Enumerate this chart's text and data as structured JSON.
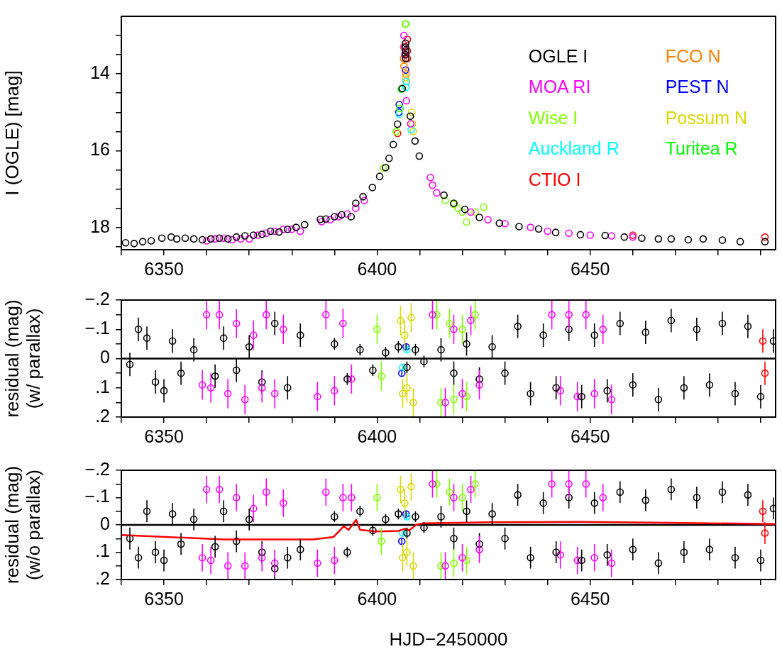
{
  "chart_data": [
    {
      "type": "scatter",
      "ylabel": "I (OGLE) [mag]",
      "xlim": [
        6340,
        6493.5
      ],
      "ylim": [
        18.58,
        12.5
      ],
      "xticks": [
        {
          "value": 6340,
          "label": null
        },
        6350,
        {
          "value": 6360,
          "label": null
        },
        {
          "value": 6370,
          "label": null
        },
        {
          "value": 6380,
          "label": null
        },
        {
          "value": 6390,
          "label": null
        },
        6400,
        {
          "value": 6410,
          "label": null
        },
        {
          "value": 6420,
          "label": null
        },
        {
          "value": 6430,
          "label": null
        },
        {
          "value": 6440,
          "label": null
        },
        6450,
        {
          "value": 6460,
          "label": null
        },
        {
          "value": 6470,
          "label": null
        },
        {
          "value": 6480,
          "label": null
        },
        {
          "value": 6490,
          "label": null
        }
      ],
      "yticks": [
        {
          "value": 13,
          "label": null
        },
        {
          "value": 13.5,
          "label": null
        },
        14,
        {
          "value": 14.5,
          "label": null
        },
        {
          "value": 15,
          "label": null
        },
        {
          "value": 15.5,
          "label": null
        },
        16,
        {
          "value": 16.5,
          "label": null
        },
        {
          "value": 17,
          "label": null
        },
        {
          "value": 17.5,
          "label": null
        },
        18,
        {
          "value": 18.5,
          "label": null
        }
      ],
      "grid": false,
      "legend": "top right",
      "marker": "circle",
      "series": [
        {
          "name": "OGLE I",
          "color": "#000000",
          "x": [
            6341,
            6343,
            6345,
            6347,
            6349.5,
            6351.7,
            6353,
            6355,
            6357,
            6359,
            6361,
            6363,
            6365,
            6367,
            6369,
            6371,
            6373,
            6375,
            6377,
            6379,
            6381,
            6383,
            6386.7,
            6388,
            6390,
            6391.7,
            6393.9,
            6395,
            6396.7,
            6398.9,
            6400.6,
            6402,
            6402.8,
            6403.8,
            6404.8,
            6405.9,
            6406.7,
            6406.7,
            6406.7,
            6406.7,
            6406.7,
            6407.8,
            6408.9,
            6409.9,
            6415.7,
            6418,
            6420.6,
            6424,
            6428.7,
            6433.3,
            6437.9,
            6441.9,
            6447.7,
            6453.5,
            6458,
            6462.1,
            6466,
            6469,
            6473,
            6476.5,
            6481,
            6485.2,
            6491
          ],
          "values": [
            18.4,
            18.42,
            18.37,
            18.35,
            18.28,
            18.25,
            18.3,
            18.28,
            18.3,
            18.32,
            18.3,
            18.28,
            18.3,
            18.25,
            18.22,
            18.2,
            18.18,
            18.1,
            18.12,
            18.05,
            18.0,
            17.93,
            17.79,
            17.78,
            17.72,
            17.67,
            17.72,
            17.37,
            17.2,
            16.96,
            16.67,
            16.44,
            16.2,
            15.84,
            15.31,
            14.38,
            13.2,
            13.3,
            13.4,
            13.5,
            13.6,
            15.1,
            15.75,
            16.14,
            17.16,
            17.37,
            17.53,
            17.74,
            17.89,
            17.98,
            18.04,
            18.13,
            18.19,
            18.21,
            18.25,
            18.28,
            18.3,
            18.3,
            18.32,
            18.3,
            18.33,
            18.37,
            18.37
          ]
        },
        {
          "name": "MOA RI",
          "color": "#ff00ff",
          "x": [
            6360,
            6362,
            6364,
            6366,
            6368,
            6370,
            6372,
            6374,
            6376,
            6378,
            6380,
            6382,
            6387,
            6389,
            6391,
            6393,
            6395,
            6397,
            6406.3,
            6406.4,
            6406.5,
            6406.9,
            6407.9,
            6412.5,
            6413,
            6414,
            6422,
            6426,
            6430,
            6436,
            6440,
            6445,
            6450,
            6455,
            6460
          ],
          "values": [
            18.35,
            18.3,
            18.28,
            18.32,
            18.3,
            18.3,
            18.2,
            18.15,
            18.1,
            18.05,
            18.05,
            18.1,
            17.85,
            17.8,
            17.72,
            17.65,
            17.5,
            17.3,
            13.0,
            13.3,
            13.5,
            14.7,
            15.3,
            16.7,
            16.9,
            17.1,
            17.6,
            17.8,
            17.9,
            18.0,
            18.1,
            18.15,
            18.2,
            18.22,
            18.25
          ]
        },
        {
          "name": "Wise I",
          "color": "#80ff00",
          "x": [
            6401.5,
            6404.5,
            6405.3,
            6406.6,
            6416,
            6418,
            6419,
            6420,
            6421,
            6423,
            6425
          ],
          "values": [
            16.45,
            15.5,
            14.9,
            12.7,
            17.3,
            17.4,
            17.5,
            17.6,
            17.86,
            17.6,
            17.47
          ]
        },
        {
          "name": "Auckland R",
          "color": "#00ffff",
          "x": [
            6405.2,
            6405.4,
            6406.8,
            6406.9,
            6408
          ],
          "values": [
            15.05,
            14.9,
            14.35,
            14.2,
            15.45
          ]
        },
        {
          "name": "CTIO I",
          "color": "#ff0000",
          "x": [
            6404.8,
            6407.1,
            6407.1,
            6407.1,
            6460,
            6491
          ],
          "values": [
            15.55,
            13.1,
            13.4,
            13.6,
            18.2,
            18.25
          ]
        },
        {
          "name": "FCO N",
          "color": "#ff8000",
          "x": [
            6406.2,
            6406.2,
            6406.3,
            6406.8,
            6406.8
          ],
          "values": [
            13.3,
            13.6,
            13.8,
            14.0,
            14.2
          ]
        },
        {
          "name": "PEST N",
          "color": "#0000ff",
          "x": [
            6405.1,
            6405.2,
            6406.7
          ],
          "values": [
            15.0,
            14.8,
            13.9
          ]
        },
        {
          "name": "Possum N",
          "color": "#d8d800",
          "x": [
            6406.7,
            6408.1,
            6408.3,
            6408.5
          ],
          "values": [
            14.1,
            15.0,
            15.3,
            15.5
          ]
        },
        {
          "name": "Turitea R",
          "color": "#00ff00",
          "x": [
            6405.7,
            6406.7
          ],
          "values": [
            14.4,
            12.7
          ]
        }
      ]
    },
    {
      "type": "scatter",
      "ylabel": "residual (mag)\n(w/ parallax)",
      "xlim": [
        6340,
        6493.5
      ],
      "ylim": [
        0.2,
        -0.2
      ],
      "xticks": [
        {
          "value": 6340,
          "label": null
        },
        6350,
        {
          "value": 6360,
          "label": null
        },
        {
          "value": 6370,
          "label": null
        },
        {
          "value": 6380,
          "label": null
        },
        {
          "value": 6390,
          "label": null
        },
        6400,
        {
          "value": 6410,
          "label": null
        },
        {
          "value": 6420,
          "label": null
        },
        {
          "value": 6430,
          "label": null
        },
        {
          "value": 6440,
          "label": null
        },
        6450,
        {
          "value": 6460,
          "label": null
        },
        {
          "value": 6470,
          "label": null
        },
        {
          "value": 6480,
          "label": null
        },
        {
          "value": 6490,
          "label": null
        }
      ],
      "yticks": [
        {
          "value": -0.2,
          "label": "−.2"
        },
        {
          "value": -0.15,
          "label": null
        },
        {
          "value": -0.1,
          "label": "−.1"
        },
        {
          "value": -0.05,
          "label": null
        },
        0,
        {
          "value": 0.05,
          "label": null
        },
        {
          "value": 0.1,
          "label": ".1"
        },
        {
          "value": 0.15,
          "label": null
        },
        {
          "value": 0.2,
          "label": ".2"
        }
      ],
      "grid": false,
      "marker": "circle",
      "ref_lines": [
        {
          "axis": "y",
          "value": 0,
          "color": "#000000"
        }
      ],
      "series": [
        {
          "color": "#000000",
          "x": [
            6342,
            6344,
            6346,
            6348,
            6350,
            6352,
            6354,
            6357,
            6362,
            6364,
            6367,
            6370,
            6373,
            6376,
            6379,
            6382,
            6390,
            6393,
            6396,
            6399,
            6402,
            6405,
            6407,
            6409,
            6411,
            6415,
            6418,
            6421,
            6424,
            6427,
            6430,
            6433,
            6436,
            6439,
            6442,
            6445,
            6448,
            6451,
            6454,
            6457,
            6460,
            6463,
            6466,
            6469,
            6472,
            6475,
            6478,
            6481,
            6484,
            6487,
            6490,
            6493
          ],
          "values": [
            0.02,
            -0.1,
            -0.07,
            0.08,
            0.11,
            -0.06,
            0.05,
            -0.03,
            0.06,
            -0.07,
            0.04,
            -0.04,
            0.08,
            -0.12,
            0.1,
            -0.08,
            -0.05,
            0.07,
            -0.03,
            0.04,
            -0.02,
            -0.04,
            0.03,
            -0.03,
            0.01,
            -0.03,
            0.05,
            -0.05,
            0.07,
            -0.04,
            0.05,
            -0.11,
            0.12,
            -0.08,
            0.1,
            -0.1,
            0.13,
            -0.08,
            0.11,
            -0.12,
            0.09,
            -0.09,
            0.14,
            -0.13,
            0.1,
            -0.1,
            0.09,
            -0.12,
            0.12,
            -0.11,
            0.13,
            -0.06
          ],
          "errors": [
            0.04,
            0.04,
            0.04,
            0.04,
            0.04,
            0.04,
            0.04,
            0.04,
            0.04,
            0.04,
            0.04,
            0.04,
            0.04,
            0.04,
            0.04,
            0.04,
            0.02,
            0.02,
            0.02,
            0.02,
            0.02,
            0.02,
            0.02,
            0.02,
            0.02,
            0.04,
            0.04,
            0.04,
            0.04,
            0.04,
            0.04,
            0.04,
            0.04,
            0.04,
            0.04,
            0.04,
            0.04,
            0.04,
            0.04,
            0.04,
            0.04,
            0.04,
            0.04,
            0.04,
            0.04,
            0.04,
            0.04,
            0.04,
            0.04,
            0.04,
            0.04,
            0.04
          ]
        },
        {
          "color": "#ff00ff",
          "x": [
            6359,
            6360,
            6361,
            6363,
            6365,
            6367,
            6369,
            6371,
            6373,
            6374,
            6376,
            6378,
            6386,
            6388,
            6390,
            6392,
            6394,
            6413,
            6416,
            6418,
            6420,
            6422,
            6424,
            6441,
            6443,
            6445,
            6447,
            6449,
            6451,
            6453,
            6455
          ],
          "values": [
            0.09,
            -0.15,
            0.1,
            -0.15,
            0.12,
            -0.12,
            0.14,
            -0.08,
            0.1,
            -0.15,
            0.12,
            -0.1,
            0.13,
            -0.15,
            0.11,
            -0.12,
            0.07,
            -0.15,
            0.15,
            -0.1,
            0.12,
            -0.13,
            0.09,
            -0.15,
            0.11,
            -0.15,
            0.13,
            -0.15,
            0.12,
            -0.1,
            0.14
          ],
          "errors": [
            0.05,
            0.05,
            0.05,
            0.05,
            0.05,
            0.05,
            0.05,
            0.05,
            0.05,
            0.05,
            0.05,
            0.05,
            0.05,
            0.05,
            0.05,
            0.05,
            0.05,
            0.05,
            0.05,
            0.05,
            0.05,
            0.05,
            0.05,
            0.05,
            0.05,
            0.05,
            0.05,
            0.05,
            0.05,
            0.05,
            0.05
          ]
        },
        {
          "color": "#80ff00",
          "x": [
            6400,
            6401,
            6414,
            6415,
            6417,
            6418,
            6420,
            6421,
            6423
          ],
          "values": [
            -0.1,
            0.06,
            -0.15,
            0.15,
            -0.12,
            0.14,
            -0.1,
            0.13,
            -0.15
          ],
          "errors": [
            0.05,
            0.05,
            0.05,
            0.05,
            0.05,
            0.05,
            0.05,
            0.05,
            0.05
          ]
        },
        {
          "color": "#d8d800",
          "x": [
            6405.5,
            6406,
            6406.5,
            6407,
            6408,
            6408.5
          ],
          "values": [
            -0.13,
            0.12,
            -0.08,
            0.1,
            -0.14,
            0.15
          ],
          "errors": [
            0.05,
            0.05,
            0.05,
            0.05,
            0.05,
            0.05
          ]
        },
        {
          "color": "#00ffff",
          "x": [
            6406,
            6407
          ],
          "values": [
            0.03,
            -0.03
          ],
          "errors": [
            0.01,
            0.01
          ]
        },
        {
          "color": "#0000ff",
          "x": [
            6405.8,
            6406.8
          ],
          "values": [
            0.05,
            -0.04
          ],
          "errors": [
            0.01,
            0.01
          ]
        },
        {
          "color": "#ff0000",
          "x": [
            6490.5,
            6491
          ],
          "values": [
            -0.06,
            0.05
          ],
          "errors": [
            0.04,
            0.04
          ]
        }
      ]
    },
    {
      "type": "scatter",
      "ylabel": "residual (mag)\n(w/o parallax)",
      "xlabel": "HJD−2450000",
      "xlim": [
        6340,
        6493.5
      ],
      "ylim": [
        0.2,
        -0.2
      ],
      "xticks": [
        {
          "value": 6340,
          "label": null
        },
        6350,
        {
          "value": 6360,
          "label": null
        },
        {
          "value": 6370,
          "label": null
        },
        {
          "value": 6380,
          "label": null
        },
        {
          "value": 6390,
          "label": null
        },
        6400,
        {
          "value": 6410,
          "label": null
        },
        {
          "value": 6420,
          "label": null
        },
        {
          "value": 6430,
          "label": null
        },
        {
          "value": 6440,
          "label": null
        },
        6450,
        {
          "value": 6460,
          "label": null
        },
        {
          "value": 6470,
          "label": null
        },
        {
          "value": 6480,
          "label": null
        },
        {
          "value": 6490,
          "label": null
        }
      ],
      "yticks": [
        {
          "value": -0.2,
          "label": "−.2"
        },
        {
          "value": -0.15,
          "label": null
        },
        {
          "value": -0.1,
          "label": "−.1"
        },
        {
          "value": -0.05,
          "label": null
        },
        0,
        {
          "value": 0.05,
          "label": null
        },
        {
          "value": 0.1,
          "label": ".1"
        },
        {
          "value": 0.15,
          "label": null
        },
        {
          "value": 0.2,
          "label": ".2"
        }
      ],
      "grid": false,
      "marker": "circle",
      "ref_lines": [
        {
          "axis": "y",
          "value": 0,
          "color": "#000000"
        }
      ],
      "series": [
        {
          "color": "#000000",
          "x": [
            6342,
            6344,
            6346,
            6348,
            6350,
            6352,
            6354,
            6357,
            6362,
            6364,
            6367,
            6370,
            6373,
            6376,
            6379,
            6382,
            6390,
            6393,
            6396,
            6399,
            6402,
            6405,
            6407,
            6409,
            6411,
            6415,
            6418,
            6421,
            6424,
            6427,
            6430,
            6433,
            6436,
            6439,
            6442,
            6445,
            6448,
            6451,
            6454,
            6457,
            6460,
            6463,
            6466,
            6469,
            6472,
            6475,
            6478,
            6481,
            6484,
            6487,
            6490,
            6493
          ],
          "values": [
            0.05,
            0.12,
            -0.05,
            0.1,
            0.13,
            -0.04,
            0.07,
            -0.02,
            0.08,
            -0.05,
            0.06,
            -0.02,
            0.1,
            0.16,
            0.12,
            0.09,
            -0.03,
            0.1,
            -0.05,
            0.02,
            -0.02,
            -0.04,
            0.03,
            -0.03,
            0.01,
            -0.03,
            0.05,
            -0.05,
            0.07,
            -0.04,
            0.05,
            -0.11,
            0.12,
            -0.08,
            0.1,
            -0.1,
            0.13,
            -0.08,
            0.11,
            -0.12,
            0.09,
            -0.09,
            0.14,
            -0.13,
            0.1,
            -0.1,
            0.09,
            -0.12,
            0.12,
            -0.11,
            0.13,
            -0.06
          ],
          "errors": [
            0.04,
            0.04,
            0.04,
            0.04,
            0.04,
            0.04,
            0.04,
            0.04,
            0.04,
            0.04,
            0.04,
            0.04,
            0.04,
            0.04,
            0.04,
            0.04,
            0.02,
            0.02,
            0.02,
            0.02,
            0.02,
            0.02,
            0.02,
            0.02,
            0.02,
            0.04,
            0.04,
            0.04,
            0.04,
            0.04,
            0.04,
            0.04,
            0.04,
            0.04,
            0.04,
            0.04,
            0.04,
            0.04,
            0.04,
            0.04,
            0.04,
            0.04,
            0.04,
            0.04,
            0.04,
            0.04,
            0.04,
            0.04,
            0.04,
            0.04,
            0.04,
            0.04
          ]
        },
        {
          "color": "#ff00ff",
          "x": [
            6359,
            6360,
            6361,
            6363,
            6365,
            6367,
            6369,
            6371,
            6373,
            6374,
            6376,
            6378,
            6386,
            6388,
            6390,
            6392,
            6394,
            6413,
            6416,
            6418,
            6420,
            6422,
            6424,
            6441,
            6443,
            6445,
            6447,
            6449,
            6451,
            6453,
            6455
          ],
          "values": [
            0.12,
            -0.13,
            0.13,
            -0.13,
            0.15,
            -0.1,
            0.15,
            -0.06,
            0.12,
            -0.12,
            0.14,
            -0.08,
            0.14,
            -0.12,
            0.13,
            -0.1,
            -0.1,
            -0.15,
            0.15,
            -0.1,
            0.12,
            -0.13,
            0.09,
            -0.15,
            0.11,
            -0.15,
            0.13,
            -0.15,
            0.12,
            -0.1,
            0.14
          ],
          "errors": [
            0.05,
            0.05,
            0.05,
            0.05,
            0.05,
            0.05,
            0.05,
            0.05,
            0.05,
            0.05,
            0.05,
            0.05,
            0.05,
            0.05,
            0.05,
            0.05,
            0.05,
            0.05,
            0.05,
            0.05,
            0.05,
            0.05,
            0.05,
            0.05,
            0.05,
            0.05,
            0.05,
            0.05,
            0.05,
            0.05,
            0.05
          ]
        },
        {
          "color": "#80ff00",
          "x": [
            6400,
            6401,
            6414,
            6415,
            6417,
            6418,
            6420,
            6421,
            6423
          ],
          "values": [
            -0.1,
            0.06,
            -0.15,
            0.15,
            -0.12,
            0.14,
            -0.1,
            0.13,
            -0.15
          ],
          "errors": [
            0.05,
            0.05,
            0.05,
            0.05,
            0.05,
            0.05,
            0.05,
            0.05,
            0.05
          ]
        },
        {
          "color": "#d8d800",
          "x": [
            6405.5,
            6406,
            6406.5,
            6407,
            6408,
            6408.5
          ],
          "values": [
            -0.13,
            0.12,
            -0.08,
            0.1,
            -0.14,
            0.15
          ],
          "errors": [
            0.05,
            0.05,
            0.05,
            0.05,
            0.05,
            0.05
          ]
        },
        {
          "color": "#00ffff",
          "x": [
            6406,
            6407
          ],
          "values": [
            0.03,
            -0.03
          ],
          "errors": [
            0.01,
            0.01
          ]
        },
        {
          "color": "#0000ff",
          "x": [
            6405.8,
            6406.8
          ],
          "values": [
            0.06,
            -0.04
          ],
          "errors": [
            0.01,
            0.01
          ]
        },
        {
          "color": "#ff0000",
          "x": [
            6490.5,
            6491
          ],
          "values": [
            -0.05,
            0.03
          ],
          "errors": [
            0.04,
            0.04
          ]
        },
        {
          "type": "line",
          "marker": "none",
          "color": "#ff0000",
          "x": [
            6340,
            6364,
            6385,
            6389.8,
            6392.2,
            6393.3,
            6395.1,
            6396,
            6399.7,
            6405,
            6406.6,
            6407.5,
            6409.2,
            6410.8,
            6426.9,
            6447.6,
            6468.4,
            6493.5
          ],
          "values": [
            0.037,
            0.053,
            0.053,
            0.044,
            0.005,
            0.018,
            -0.019,
            0.018,
            0.024,
            0.022,
            0.014,
            0.02,
            -0.001,
            -0.006,
            -0.01,
            -0.011,
            -0.008,
            -0.003
          ]
        }
      ]
    }
  ]
}
